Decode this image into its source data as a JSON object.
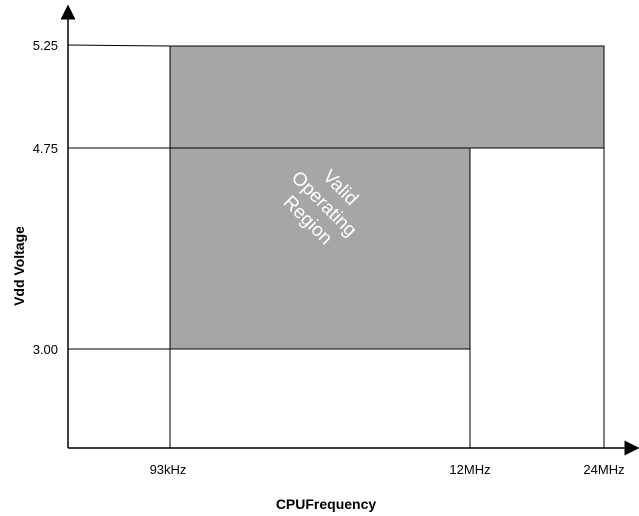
{
  "chart_data": {
    "type": "area",
    "xlabel": "CPUFrequency",
    "ylabel": "Vdd Voltage",
    "x_ticks": [
      "93kHz",
      "12MHz",
      "24MHz"
    ],
    "y_ticks": [
      "5.25",
      "4.75",
      "3.00"
    ],
    "region": {
      "label_lines": [
        "Valid",
        "Operating",
        "Region"
      ],
      "polygon": [
        {
          "x": "93kHz",
          "y": "3.00"
        },
        {
          "x": "12MHz",
          "y": "3.00"
        },
        {
          "x": "12MHz",
          "y": "4.75"
        },
        {
          "x": "24MHz",
          "y": "4.75"
        },
        {
          "x": "24MHz",
          "y": "5.25"
        },
        {
          "x": "93kHz",
          "y": "5.25"
        }
      ]
    },
    "colors": {
      "region_fill": "#a6a6a6",
      "line": "#000000",
      "label": "#ffffff"
    }
  }
}
